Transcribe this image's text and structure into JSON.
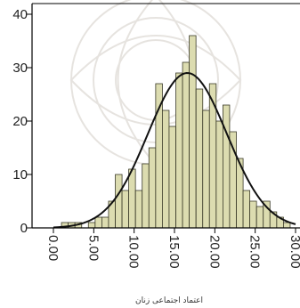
{
  "chart_data": {
    "type": "bar",
    "title": "",
    "xlabel": "اعتماد اجتماعی زنان",
    "ylabel": "",
    "xlim": [
      0,
      30
    ],
    "ylim": [
      0,
      40
    ],
    "grid": false,
    "x_tick_labels": [
      "0.00",
      "5.00",
      "10.00",
      "15.00",
      "20.00",
      "25.00",
      "30.00"
    ],
    "x_tick_values": [
      0,
      5,
      10,
      15,
      20,
      25,
      30
    ],
    "y_tick_labels": [
      "0",
      "10",
      "20",
      "30",
      "40"
    ],
    "y_tick_values": [
      0,
      10,
      20,
      30,
      40
    ],
    "bin_width": 0.833,
    "bins": [
      {
        "start": 1.0,
        "count": 1
      },
      {
        "start": 1.83,
        "count": 1
      },
      {
        "start": 2.67,
        "count": 1
      },
      {
        "start": 3.5,
        "count": 0
      },
      {
        "start": 4.33,
        "count": 1
      },
      {
        "start": 5.17,
        "count": 2
      },
      {
        "start": 6.0,
        "count": 2
      },
      {
        "start": 6.83,
        "count": 5
      },
      {
        "start": 7.67,
        "count": 10
      },
      {
        "start": 8.5,
        "count": 7
      },
      {
        "start": 9.33,
        "count": 11
      },
      {
        "start": 10.17,
        "count": 7
      },
      {
        "start": 11.0,
        "count": 12
      },
      {
        "start": 11.83,
        "count": 15
      },
      {
        "start": 12.67,
        "count": 27
      },
      {
        "start": 13.5,
        "count": 22
      },
      {
        "start": 14.33,
        "count": 19
      },
      {
        "start": 15.17,
        "count": 29
      },
      {
        "start": 16.0,
        "count": 31
      },
      {
        "start": 16.83,
        "count": 36
      },
      {
        "start": 17.67,
        "count": 26
      },
      {
        "start": 18.5,
        "count": 22
      },
      {
        "start": 19.33,
        "count": 27
      },
      {
        "start": 20.17,
        "count": 20
      },
      {
        "start": 21.0,
        "count": 23
      },
      {
        "start": 21.83,
        "count": 18
      },
      {
        "start": 22.67,
        "count": 13
      },
      {
        "start": 23.5,
        "count": 7
      },
      {
        "start": 24.33,
        "count": 5
      },
      {
        "start": 25.17,
        "count": 4
      },
      {
        "start": 26.0,
        "count": 5
      },
      {
        "start": 26.83,
        "count": 3
      },
      {
        "start": 27.67,
        "count": 2
      },
      {
        "start": 28.5,
        "count": 1
      }
    ],
    "normal_curve": {
      "mean": 16.6,
      "sd": 4.9,
      "peak": 29
    },
    "colors": {
      "bar_fill": "#dcdcb0",
      "bar_stroke": "#3a3a28",
      "curve": "#111111",
      "axis": "#000000"
    }
  }
}
